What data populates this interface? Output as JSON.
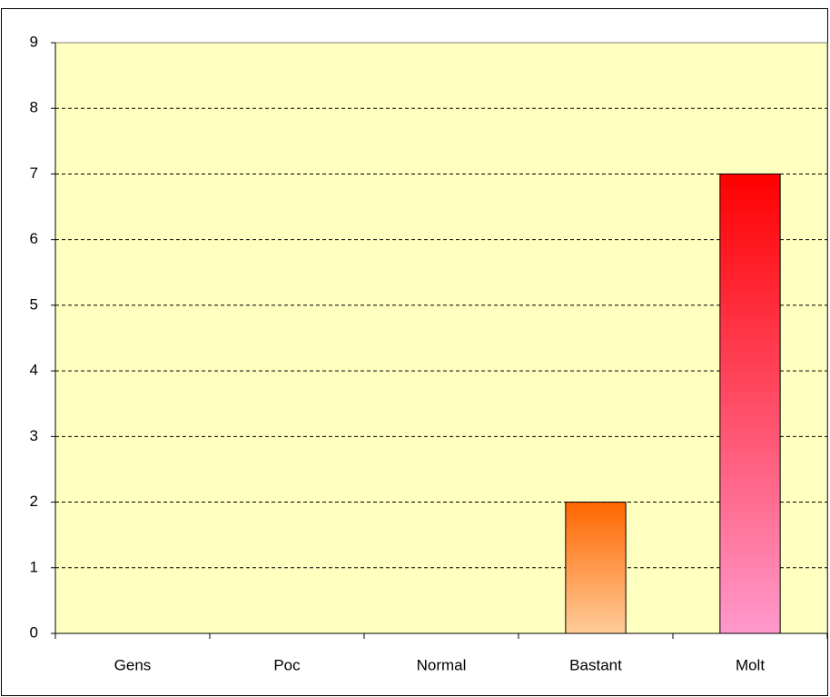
{
  "chart_data": {
    "type": "bar",
    "categories": [
      "Gens",
      "Poc",
      "Normal",
      "Bastant",
      "Molt"
    ],
    "values": [
      0,
      0,
      0,
      2,
      7
    ],
    "colors": [
      [
        "#ff6600",
        "#ffcc99"
      ],
      [
        "#ff6600",
        "#ffcc99"
      ],
      [
        "#ff6600",
        "#ffcc99"
      ],
      [
        "#ff6600",
        "#ffcc99"
      ],
      [
        "#ff0000",
        "#ff99cc"
      ]
    ],
    "plot_background": "#ffffc0",
    "ylim": [
      0,
      9
    ],
    "yticks": [
      0,
      1,
      2,
      3,
      4,
      5,
      6,
      7,
      8,
      9
    ],
    "grid": true
  }
}
